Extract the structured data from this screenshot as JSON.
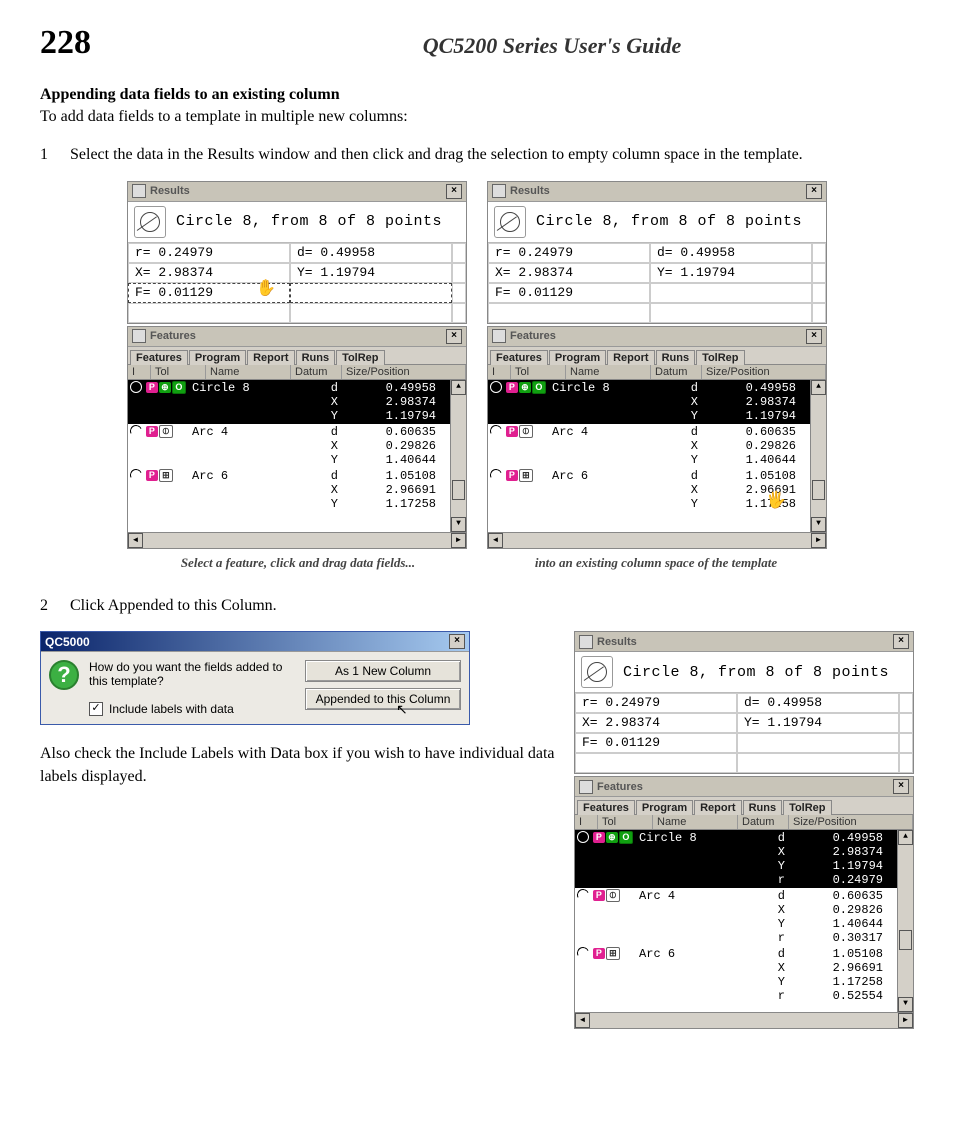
{
  "page": {
    "number": "228",
    "guide_title": "QC5200 Series User's Guide",
    "section_title": "Appending data fields to an existing column",
    "intro": "To add data fields to a template in multiple new columns:",
    "step1_num": "1",
    "step1": "Select the data in the Results window and then click and drag the selection to empty column space in the template.",
    "step2_num": "2",
    "step2": "Click Appended to this Column.",
    "also_text": "Also check the Include Labels with Data box if you wish to have individual data labels displayed."
  },
  "captions": {
    "left": "Select a feature, click and drag data fields...",
    "right": "into an existing column space of the template"
  },
  "results": {
    "title": "Results",
    "header_text": "Circle 8, from 8 of 8 points",
    "r": "r= 0.24979",
    "d": "d= 0.49958",
    "x": "X= 2.98374",
    "y": "Y= 1.19794",
    "f": "F= 0.01129"
  },
  "features": {
    "title": "Features",
    "tabs": [
      "Features",
      "Program",
      "Report",
      "Runs",
      "TolRep"
    ],
    "cols": {
      "i": "I",
      "tol": "Tol",
      "name": "Name",
      "datum": "Datum",
      "size": "Size/Position"
    },
    "rows_basic": [
      {
        "sel": true,
        "name": "Circle 8",
        "vals": [
          [
            "d",
            "0.49958"
          ],
          [
            "X",
            "2.98374"
          ],
          [
            "Y",
            "1.19794"
          ]
        ]
      },
      {
        "sel": false,
        "name": "Arc 4",
        "vals": [
          [
            "d",
            "0.60635"
          ],
          [
            "X",
            "0.29826"
          ],
          [
            "Y",
            "1.40644"
          ]
        ]
      },
      {
        "sel": false,
        "name": "Arc 6",
        "vals": [
          [
            "d",
            "1.05108"
          ],
          [
            "X",
            "2.96691"
          ],
          [
            "Y",
            "1.17258"
          ]
        ]
      }
    ],
    "rows_appended": [
      {
        "sel": true,
        "name": "Circle 8",
        "vals": [
          [
            "d",
            "0.49958"
          ],
          [
            "X",
            "2.98374"
          ],
          [
            "Y",
            "1.19794"
          ],
          [
            "r",
            "0.24979"
          ]
        ]
      },
      {
        "sel": false,
        "name": "Arc 4",
        "vals": [
          [
            "d",
            "0.60635"
          ],
          [
            "X",
            "0.29826"
          ],
          [
            "Y",
            "1.40644"
          ],
          [
            "r",
            "0.30317"
          ]
        ]
      },
      {
        "sel": false,
        "name": "Arc 6",
        "vals": [
          [
            "d",
            "1.05108"
          ],
          [
            "X",
            "2.96691"
          ],
          [
            "Y",
            "1.17258"
          ],
          [
            "r",
            "0.52554"
          ]
        ]
      }
    ]
  },
  "dialog": {
    "title": "QC5000",
    "question": "How do you want the fields added to this template?",
    "checkbox": "Include labels with data",
    "btn1": "As 1 New Column",
    "btn2": "Appended to this Column"
  }
}
